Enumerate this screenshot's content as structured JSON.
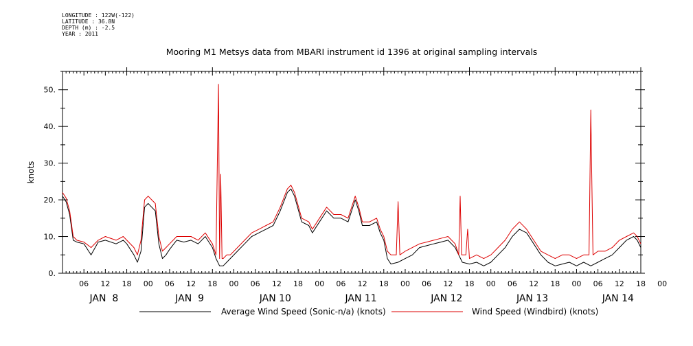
{
  "meta": {
    "longitude": "LONGITUDE : 122W(-122)",
    "latitude": "LATITUDE : 36.8N",
    "depth": "DEPTH (m) : -2.5",
    "year": "YEAR : 2011"
  },
  "chart_data": {
    "type": "line",
    "title": "Mooring M1 Metsys data from MBARI instrument id 1396 at original sampling intervals",
    "ylabel": "knots",
    "xlabel": "",
    "ylim": [
      0,
      55
    ],
    "xlim_hours": [
      0,
      162
    ],
    "yticks": [
      "0.",
      "10.",
      "20.",
      "30.",
      "40.",
      "50."
    ],
    "ytick_values": [
      0,
      10,
      20,
      30,
      40,
      50
    ],
    "hour_tick_labels": [
      "06",
      "12",
      "18",
      "00",
      "06",
      "12",
      "18",
      "00",
      "06",
      "12",
      "18",
      "00",
      "06",
      "12",
      "18",
      "00",
      "06",
      "12",
      "18",
      "00",
      "06",
      "12",
      "18",
      "00",
      "06",
      "12",
      "18",
      "00"
    ],
    "day_labels": [
      "JAN  8",
      "JAN  9",
      "JAN 10",
      "JAN 11",
      "JAN 12",
      "JAN 13",
      "JAN 14"
    ],
    "grid": false,
    "legend_position": "bottom",
    "series": [
      {
        "name": "Average Wind Speed (Sonic-n/a) (knots)",
        "color": "#000000",
        "points": [
          [
            0,
            21
          ],
          [
            1,
            19.5
          ],
          [
            2,
            16
          ],
          [
            3,
            9
          ],
          [
            4,
            8.5
          ],
          [
            6,
            8
          ],
          [
            8,
            5
          ],
          [
            10,
            8.5
          ],
          [
            12,
            9
          ],
          [
            15,
            8
          ],
          [
            17,
            9
          ],
          [
            18,
            8
          ],
          [
            20,
            5
          ],
          [
            21,
            3
          ],
          [
            22,
            6
          ],
          [
            23,
            18
          ],
          [
            24,
            19
          ],
          [
            25,
            18
          ],
          [
            26,
            17
          ],
          [
            27,
            8
          ],
          [
            28,
            4
          ],
          [
            29,
            5
          ],
          [
            30,
            6.5
          ],
          [
            32,
            9
          ],
          [
            34,
            8.5
          ],
          [
            36,
            9
          ],
          [
            38,
            8
          ],
          [
            40,
            10
          ],
          [
            42,
            7
          ],
          [
            43,
            4
          ],
          [
            44,
            2
          ],
          [
            45,
            2
          ],
          [
            46,
            3
          ],
          [
            47,
            4
          ],
          [
            49,
            6
          ],
          [
            51,
            8
          ],
          [
            53,
            10
          ],
          [
            55,
            11
          ],
          [
            57,
            12
          ],
          [
            59,
            13
          ],
          [
            61,
            17
          ],
          [
            63,
            22
          ],
          [
            64,
            23
          ],
          [
            65,
            21
          ],
          [
            67,
            14
          ],
          [
            69,
            13
          ],
          [
            70,
            11
          ],
          [
            72,
            14
          ],
          [
            74,
            17
          ],
          [
            76,
            15
          ],
          [
            78,
            15
          ],
          [
            80,
            14
          ],
          [
            82,
            20
          ],
          [
            83,
            17
          ],
          [
            84,
            13
          ],
          [
            86,
            13
          ],
          [
            88,
            14
          ],
          [
            89,
            11
          ],
          [
            90,
            9
          ],
          [
            91,
            4
          ],
          [
            92,
            2.5
          ],
          [
            94,
            3
          ],
          [
            96,
            4
          ],
          [
            98,
            5
          ],
          [
            100,
            7
          ],
          [
            102,
            7.5
          ],
          [
            104,
            8
          ],
          [
            106,
            8.5
          ],
          [
            108,
            9
          ],
          [
            110,
            7
          ],
          [
            112,
            3
          ],
          [
            114,
            2.5
          ],
          [
            116,
            3
          ],
          [
            118,
            2
          ],
          [
            120,
            3
          ],
          [
            122,
            5
          ],
          [
            124,
            7
          ],
          [
            126,
            10
          ],
          [
            128,
            12
          ],
          [
            130,
            11
          ],
          [
            132,
            8
          ],
          [
            134,
            5
          ],
          [
            136,
            3
          ],
          [
            138,
            2
          ],
          [
            140,
            2.5
          ],
          [
            142,
            3
          ],
          [
            144,
            2
          ],
          [
            146,
            3
          ],
          [
            148,
            2
          ],
          [
            150,
            3
          ],
          [
            152,
            4
          ],
          [
            154,
            5
          ],
          [
            156,
            7
          ],
          [
            158,
            9
          ],
          [
            160,
            10
          ],
          [
            161,
            9
          ],
          [
            162,
            7
          ]
        ]
      },
      {
        "name": "Wind Speed (Windbird) (knots)",
        "color": "#dd0000",
        "points": [
          [
            0,
            22
          ],
          [
            1,
            20.5
          ],
          [
            2,
            17
          ],
          [
            3,
            10
          ],
          [
            4,
            9
          ],
          [
            6,
            8.5
          ],
          [
            8,
            7
          ],
          [
            10,
            9
          ],
          [
            12,
            10
          ],
          [
            15,
            9
          ],
          [
            17,
            10
          ],
          [
            18,
            9
          ],
          [
            20,
            7
          ],
          [
            21,
            5
          ],
          [
            22,
            9
          ],
          [
            23,
            20
          ],
          [
            24,
            21
          ],
          [
            25,
            20
          ],
          [
            26,
            19
          ],
          [
            27,
            10
          ],
          [
            28,
            6
          ],
          [
            29,
            7
          ],
          [
            30,
            8
          ],
          [
            32,
            10
          ],
          [
            34,
            10
          ],
          [
            36,
            10
          ],
          [
            38,
            9
          ],
          [
            40,
            11
          ],
          [
            42,
            8
          ],
          [
            43,
            5
          ],
          [
            43.7,
            51.5
          ],
          [
            44,
            4
          ],
          [
            44.3,
            27
          ],
          [
            44.7,
            4
          ],
          [
            45,
            4
          ],
          [
            46,
            5
          ],
          [
            47,
            5
          ],
          [
            49,
            7
          ],
          [
            51,
            9
          ],
          [
            53,
            11
          ],
          [
            55,
            12
          ],
          [
            57,
            13
          ],
          [
            59,
            14
          ],
          [
            61,
            18
          ],
          [
            63,
            23
          ],
          [
            64,
            24
          ],
          [
            65,
            22
          ],
          [
            67,
            15
          ],
          [
            69,
            14
          ],
          [
            70,
            12
          ],
          [
            72,
            15
          ],
          [
            74,
            18
          ],
          [
            76,
            16
          ],
          [
            78,
            16
          ],
          [
            80,
            15
          ],
          [
            82,
            21
          ],
          [
            83,
            18
          ],
          [
            84,
            14
          ],
          [
            86,
            14
          ],
          [
            88,
            15
          ],
          [
            89,
            12
          ],
          [
            90,
            10
          ],
          [
            91,
            6
          ],
          [
            92,
            5
          ],
          [
            93.5,
            5
          ],
          [
            94,
            19.5
          ],
          [
            94.5,
            5
          ],
          [
            96,
            6
          ],
          [
            98,
            7
          ],
          [
            100,
            8
          ],
          [
            102,
            8.5
          ],
          [
            104,
            9
          ],
          [
            106,
            9.5
          ],
          [
            108,
            10
          ],
          [
            110,
            8
          ],
          [
            111,
            5
          ],
          [
            111.4,
            21
          ],
          [
            111.8,
            5
          ],
          [
            112,
            5
          ],
          [
            113,
            5
          ],
          [
            113.5,
            12
          ],
          [
            114,
            4
          ],
          [
            116,
            5
          ],
          [
            118,
            4
          ],
          [
            120,
            5
          ],
          [
            122,
            7
          ],
          [
            124,
            9
          ],
          [
            126,
            12
          ],
          [
            128,
            14
          ],
          [
            130,
            12
          ],
          [
            132,
            9
          ],
          [
            134,
            6
          ],
          [
            136,
            5
          ],
          [
            138,
            4
          ],
          [
            140,
            5
          ],
          [
            142,
            5
          ],
          [
            144,
            4
          ],
          [
            146,
            5
          ],
          [
            147.5,
            5
          ],
          [
            148,
            44.5
          ],
          [
            148.3,
            24
          ],
          [
            148.6,
            5
          ],
          [
            150,
            6
          ],
          [
            152,
            6
          ],
          [
            154,
            7
          ],
          [
            156,
            9
          ],
          [
            158,
            10
          ],
          [
            160,
            11
          ],
          [
            161,
            10
          ],
          [
            162,
            8
          ]
        ]
      }
    ]
  }
}
